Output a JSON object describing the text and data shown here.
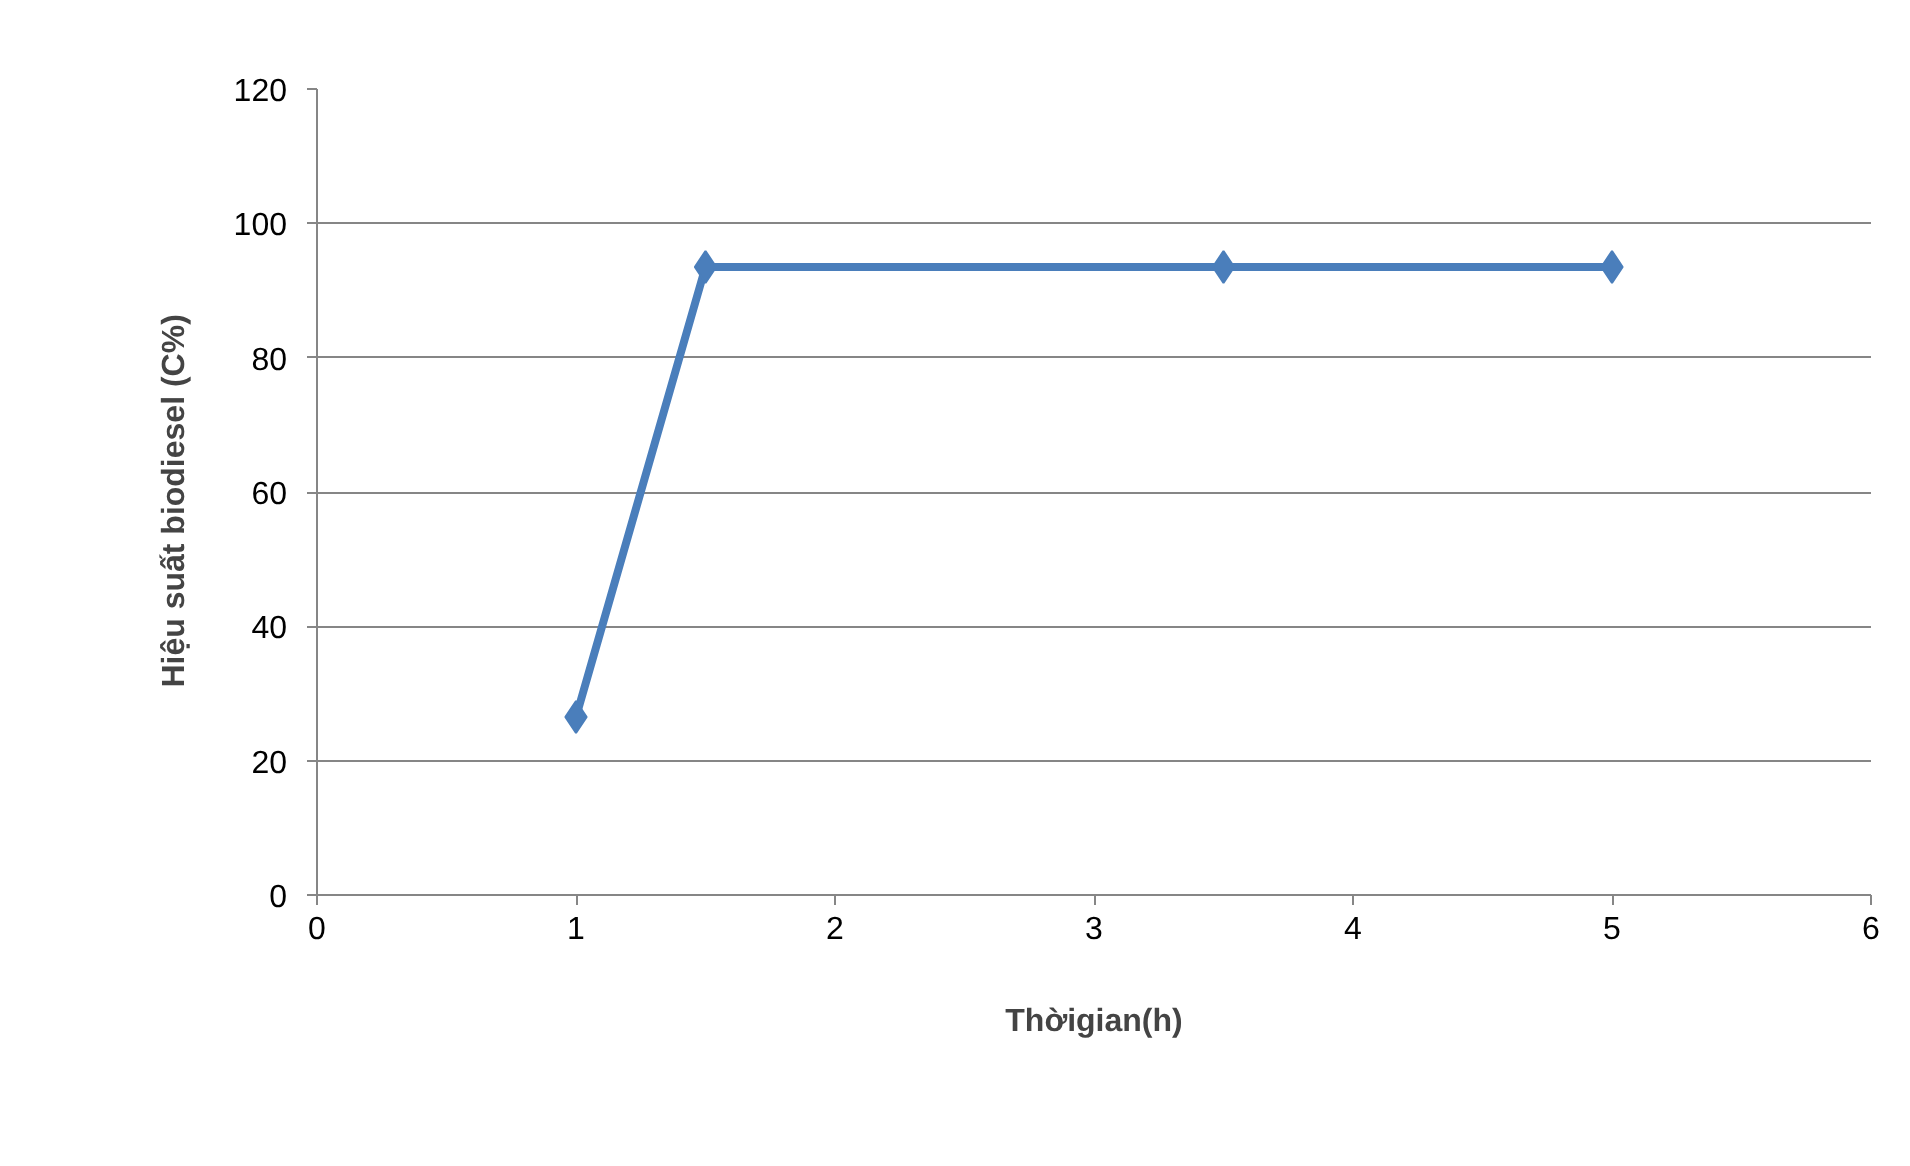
{
  "chart_data": {
    "type": "line",
    "xlabel": "Thờigian(h)",
    "ylabel": "Hiệu suất biodiesel   (C%)",
    "x": [
      1,
      1.5,
      3.5,
      5
    ],
    "series": [
      {
        "color": "#4a7ebb",
        "values": [
          26.5,
          93.5,
          93.5,
          93.5
        ]
      }
    ],
    "xlim": [
      0,
      6
    ],
    "xticks": [
      0,
      1,
      2,
      3,
      4,
      5,
      6
    ],
    "ylim": [
      0,
      120
    ],
    "yticks": [
      0,
      20,
      40,
      60,
      80,
      100,
      120
    ],
    "grid": "y",
    "marker": "diamond",
    "line_style": "solid"
  }
}
